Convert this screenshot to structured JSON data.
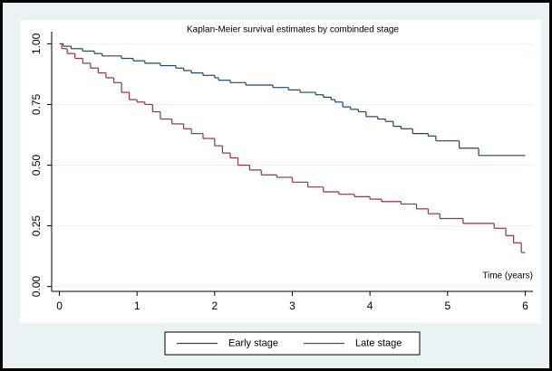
{
  "chart_data": {
    "type": "step",
    "title": "Kaplan-Meier survival estimates by combinded stage",
    "annotation": "Time (years)",
    "xlim": [
      -0.1,
      6.1
    ],
    "xticks": [
      0,
      1,
      2,
      3,
      4,
      5,
      6
    ],
    "ylim": [
      -0.02,
      1.05
    ],
    "yticks": [
      {
        "value": 0,
        "label": "0.00"
      },
      {
        "value": 0.25,
        "label": "0.25"
      },
      {
        "value": 0.5,
        "label": "0.50"
      },
      {
        "value": 0.75,
        "label": "0.75"
      },
      {
        "value": 1,
        "label": "1.00"
      }
    ],
    "grid": true,
    "legend": "bottom",
    "series": [
      {
        "name": "Early stage",
        "color": "#1a476f",
        "x": [
          0,
          0.05,
          0.15,
          0.3,
          0.45,
          0.55,
          0.8,
          0.95,
          1.1,
          1.3,
          1.5,
          1.6,
          1.7,
          1.85,
          2.0,
          2.05,
          2.2,
          2.4,
          2.75,
          2.95,
          3.1,
          3.3,
          3.4,
          3.5,
          3.55,
          3.65,
          3.75,
          3.85,
          3.95,
          4.1,
          4.2,
          4.3,
          4.4,
          4.55,
          4.75,
          4.85,
          5.15,
          5.4,
          6.0
        ],
        "values": [
          1.0,
          0.99,
          0.98,
          0.97,
          0.96,
          0.95,
          0.94,
          0.93,
          0.92,
          0.91,
          0.9,
          0.89,
          0.88,
          0.87,
          0.86,
          0.85,
          0.84,
          0.83,
          0.82,
          0.81,
          0.8,
          0.79,
          0.78,
          0.77,
          0.76,
          0.74,
          0.73,
          0.72,
          0.7,
          0.69,
          0.68,
          0.66,
          0.65,
          0.63,
          0.62,
          0.6,
          0.57,
          0.54,
          0.54
        ]
      },
      {
        "name": "Late stage",
        "color": "#90353b",
        "x": [
          0,
          0.03,
          0.1,
          0.2,
          0.3,
          0.4,
          0.5,
          0.6,
          0.7,
          0.8,
          0.9,
          1.0,
          1.1,
          1.2,
          1.3,
          1.45,
          1.6,
          1.7,
          1.85,
          2.0,
          2.1,
          2.2,
          2.3,
          2.45,
          2.6,
          2.8,
          3.0,
          3.2,
          3.4,
          3.6,
          3.8,
          4.0,
          4.15,
          4.4,
          4.6,
          4.75,
          4.9,
          5.2,
          5.6,
          5.75,
          5.85,
          5.95,
          6.0
        ],
        "values": [
          1.0,
          0.98,
          0.96,
          0.94,
          0.92,
          0.9,
          0.88,
          0.86,
          0.84,
          0.8,
          0.77,
          0.76,
          0.75,
          0.72,
          0.69,
          0.67,
          0.65,
          0.63,
          0.61,
          0.58,
          0.55,
          0.53,
          0.5,
          0.48,
          0.46,
          0.45,
          0.43,
          0.41,
          0.39,
          0.38,
          0.37,
          0.36,
          0.35,
          0.34,
          0.32,
          0.3,
          0.28,
          0.26,
          0.24,
          0.21,
          0.18,
          0.14,
          0.14
        ]
      }
    ]
  }
}
